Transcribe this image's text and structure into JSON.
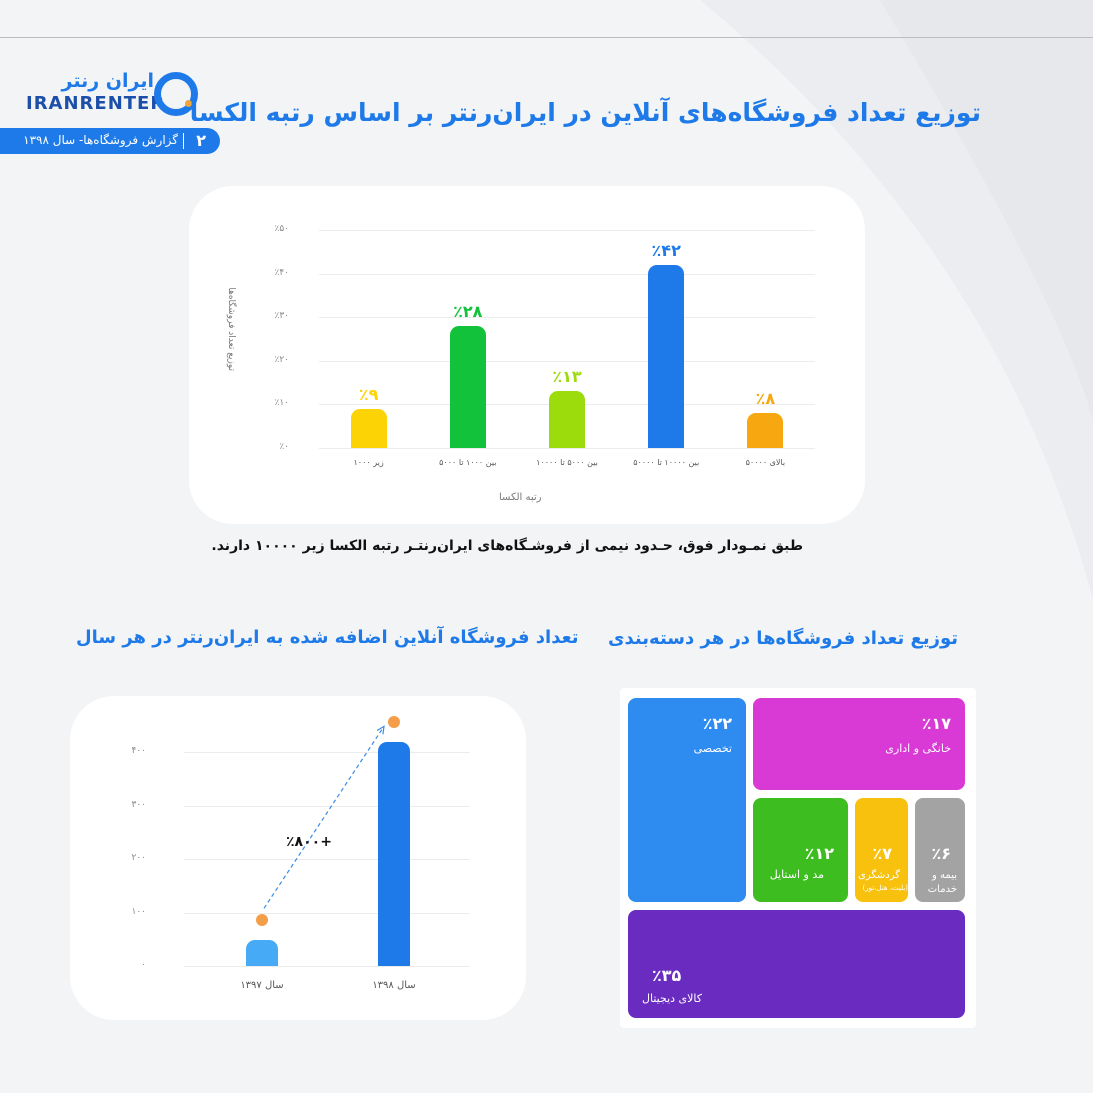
{
  "header": {
    "logo_fa": "ایران رنتر",
    "logo_en": "IRANRENTER",
    "page_number": "۲",
    "report_label": "گزارش فروشگاه‌ها- سال ۱۳۹۸"
  },
  "main_title": "توزیع تعداد فروشگاه‌های آنلاین در ایران‌رنتر بر اساس رتبه الکسا",
  "caption": "طبق نمـودار فوق، حـدود نیمی از فروشـگاه‌های ایران‌رنتـر رتبه الکسا زیر ۱۰۰۰۰ دارند.",
  "chart_data": [
    {
      "type": "bar",
      "title": "",
      "ylabel": "توزیع تعداد فروشگاه‌ها",
      "xlabel": "رتبه الکسا",
      "ylim": [
        0,
        50
      ],
      "yticks": [
        "٪۰",
        "٪۱۰",
        "٪۲۰",
        "٪۳۰",
        "٪۴۰",
        "٪۵۰"
      ],
      "categories": [
        "زیر ۱۰۰۰",
        "بین ۱۰۰۰ تا ۵۰۰۰",
        "بین ۵۰۰۰ تا ۱۰۰۰۰",
        "بین ۱۰۰۰۰ تا ۵۰۰۰۰",
        "بالای ۵۰۰۰۰"
      ],
      "values": [
        9,
        28,
        13,
        42,
        8
      ],
      "value_labels": [
        "٪۹",
        "٪۲۸",
        "٪۱۳",
        "٪۴۲",
        "٪۸"
      ],
      "colors": [
        "#fcd406",
        "#12c23a",
        "#9cdc0c",
        "#1e7ae8",
        "#f7a70f"
      ],
      "grid": true
    },
    {
      "type": "bar",
      "title": "تعداد فروشگاه آنلاین اضافه شده به ایران‌رنتر در هر سال",
      "ylim": [
        0,
        400
      ],
      "yticks": [
        "۰",
        "۱۰۰",
        "۲۰۰",
        "۳۰۰",
        "۴۰۰"
      ],
      "categories": [
        "سال ۱۳۹۷",
        "سال ۱۳۹۸"
      ],
      "values": [
        48,
        418
      ],
      "colors": [
        "#46aaf6",
        "#1e7ae8"
      ],
      "annotation": "+٪۸۰۰",
      "grid": true
    }
  ],
  "treemap": {
    "title": "توزیع تعداد فروشگاه‌ها در هر دسته‌بندی",
    "items": [
      {
        "pct": "٪۲۲",
        "label": "تخصصی",
        "color": "#2e8cf0",
        "value": 22
      },
      {
        "pct": "٪۱۷",
        "label": "خانگی و اداری",
        "color": "#d93ad6",
        "value": 17
      },
      {
        "pct": "٪۱۲",
        "label": "مد و استایل",
        "color": "#3dbd1f",
        "value": 12
      },
      {
        "pct": "٪۷",
        "label": "گردشگری",
        "sub": "(بلیت، هتل،تور)",
        "color": "#f7c10e",
        "value": 7
      },
      {
        "pct": "٪۶",
        "label": "بیمه و",
        "label2": "خدمات",
        "color": "#a3a3a3",
        "value": 6
      },
      {
        "pct": "٪۳۵",
        "label": "کالای دیجیتال",
        "color": "#6a2cc0",
        "value": 35
      }
    ]
  }
}
